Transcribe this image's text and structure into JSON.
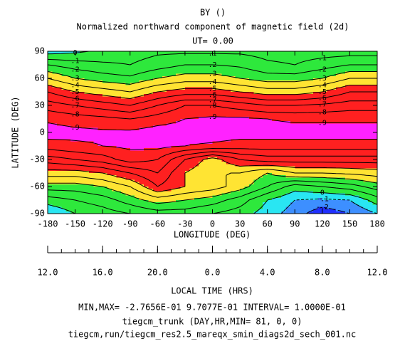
{
  "chart_data": {
    "type": "contour",
    "title": "BY ()",
    "subtitle": "Normalized northward component of magnetic field (2d)",
    "annotation": "UT= 0.00",
    "xlabel": "LONGITUDE (DEG)",
    "ylabel": "LATITUDE (DEG)",
    "xlim": [
      -180,
      180
    ],
    "ylim": [
      -90,
      90
    ],
    "xticks": [
      -180,
      -150,
      -120,
      -90,
      -60,
      -30,
      0,
      30,
      60,
      90,
      120,
      150,
      180
    ],
    "yticks": [
      -90,
      -60,
      -30,
      0,
      30,
      60,
      90
    ],
    "x": [
      -180,
      -150,
      -120,
      -90,
      -60,
      -30,
      0,
      30,
      60,
      90,
      120,
      150,
      180
    ],
    "y": [
      90,
      75,
      60,
      45,
      30,
      15,
      0,
      -15,
      -30,
      -45,
      -60,
      -75,
      -90
    ],
    "z": [
      [
        -0.05,
        -0.02,
        0.02,
        0.05,
        0.08,
        0.08,
        0.08,
        0.08,
        0.06,
        0.05,
        0.05,
        0.05,
        0.05
      ],
      [
        0.2,
        0.15,
        0.12,
        0.1,
        0.15,
        0.2,
        0.2,
        0.18,
        0.12,
        0.1,
        0.15,
        0.2,
        0.2
      ],
      [
        0.4,
        0.3,
        0.25,
        0.22,
        0.3,
        0.35,
        0.35,
        0.3,
        0.25,
        0.25,
        0.3,
        0.4,
        0.4
      ],
      [
        0.6,
        0.5,
        0.45,
        0.4,
        0.5,
        0.55,
        0.55,
        0.5,
        0.45,
        0.45,
        0.5,
        0.6,
        0.6
      ],
      [
        0.75,
        0.7,
        0.65,
        0.6,
        0.7,
        0.8,
        0.8,
        0.75,
        0.7,
        0.7,
        0.72,
        0.75,
        0.75
      ],
      [
        0.88,
        0.85,
        0.83,
        0.8,
        0.85,
        0.9,
        0.92,
        0.92,
        0.9,
        0.88,
        0.88,
        0.88,
        0.88
      ],
      [
        0.95,
        0.93,
        0.92,
        0.92,
        0.95,
        0.95,
        0.96,
        0.95,
        0.95,
        0.95,
        0.95,
        0.95,
        0.95
      ],
      [
        0.85,
        0.88,
        0.9,
        0.92,
        0.93,
        0.9,
        0.88,
        0.85,
        0.85,
        0.85,
        0.85,
        0.85,
        0.85
      ],
      [
        0.65,
        0.7,
        0.75,
        0.85,
        0.8,
        0.6,
        0.45,
        0.6,
        0.65,
        0.65,
        0.65,
        0.65,
        0.65
      ],
      [
        0.45,
        0.45,
        0.5,
        0.6,
        0.7,
        0.5,
        0.4,
        0.4,
        0.3,
        0.4,
        0.4,
        0.42,
        0.45
      ],
      [
        0.25,
        0.25,
        0.3,
        0.4,
        0.6,
        0.5,
        0.45,
        0.35,
        0.2,
        0.05,
        0.1,
        0.15,
        0.25
      ],
      [
        0.05,
        0.1,
        0.15,
        0.25,
        0.35,
        0.3,
        0.25,
        0.15,
        0.0,
        -0.1,
        -0.12,
        -0.1,
        0.05
      ],
      [
        -0.1,
        0.0,
        0.05,
        0.1,
        0.15,
        0.15,
        0.1,
        0.05,
        -0.05,
        -0.15,
        -0.27,
        -0.2,
        -0.1
      ]
    ],
    "color_boundaries": [
      -0.2,
      -0.1,
      0,
      0.3,
      0.5,
      0.9
    ],
    "colors": [
      "#1f2fff",
      "#3d8fff",
      "#29e6f2",
      "#2ee83c",
      "#ffe433",
      "#ff2020",
      "#ff22ff"
    ],
    "contour_levels": [
      {
        "value": -0.2,
        "label": "-.2"
      },
      {
        "value": -0.1,
        "label": "-.1"
      },
      0,
      {
        "value": 0.1,
        "label": ".1"
      },
      {
        "value": 0.2,
        "label": ".2"
      },
      {
        "value": 0.3,
        "label": ".3"
      },
      {
        "value": 0.4,
        "label": ".4"
      },
      {
        "value": 0.5,
        "label": ".5"
      },
      {
        "value": 0.6,
        "label": ".6"
      },
      {
        "value": 0.7,
        "label": ".7"
      },
      {
        "value": 0.8,
        "label": ".8"
      },
      {
        "value": 0.9,
        "label": ".9"
      }
    ],
    "local_time": {
      "label": "LOCAL TIME (HRS)",
      "tick_labels": [
        "12.0",
        "16.0",
        "20.0",
        "0.0",
        "4.0",
        "8.0",
        "12.0"
      ]
    },
    "footer": [
      "MIN,MAX= -2.7656E-01  9.7077E-01 INTERVAL=  1.0000E-01",
      "tiegcm_trunk (DAY,HR,MIN= 81, 0, 0)",
      "tiegcm,run/tiegcm_res2.5_mareqx_smin_diags2d_sech_001.nc"
    ]
  }
}
